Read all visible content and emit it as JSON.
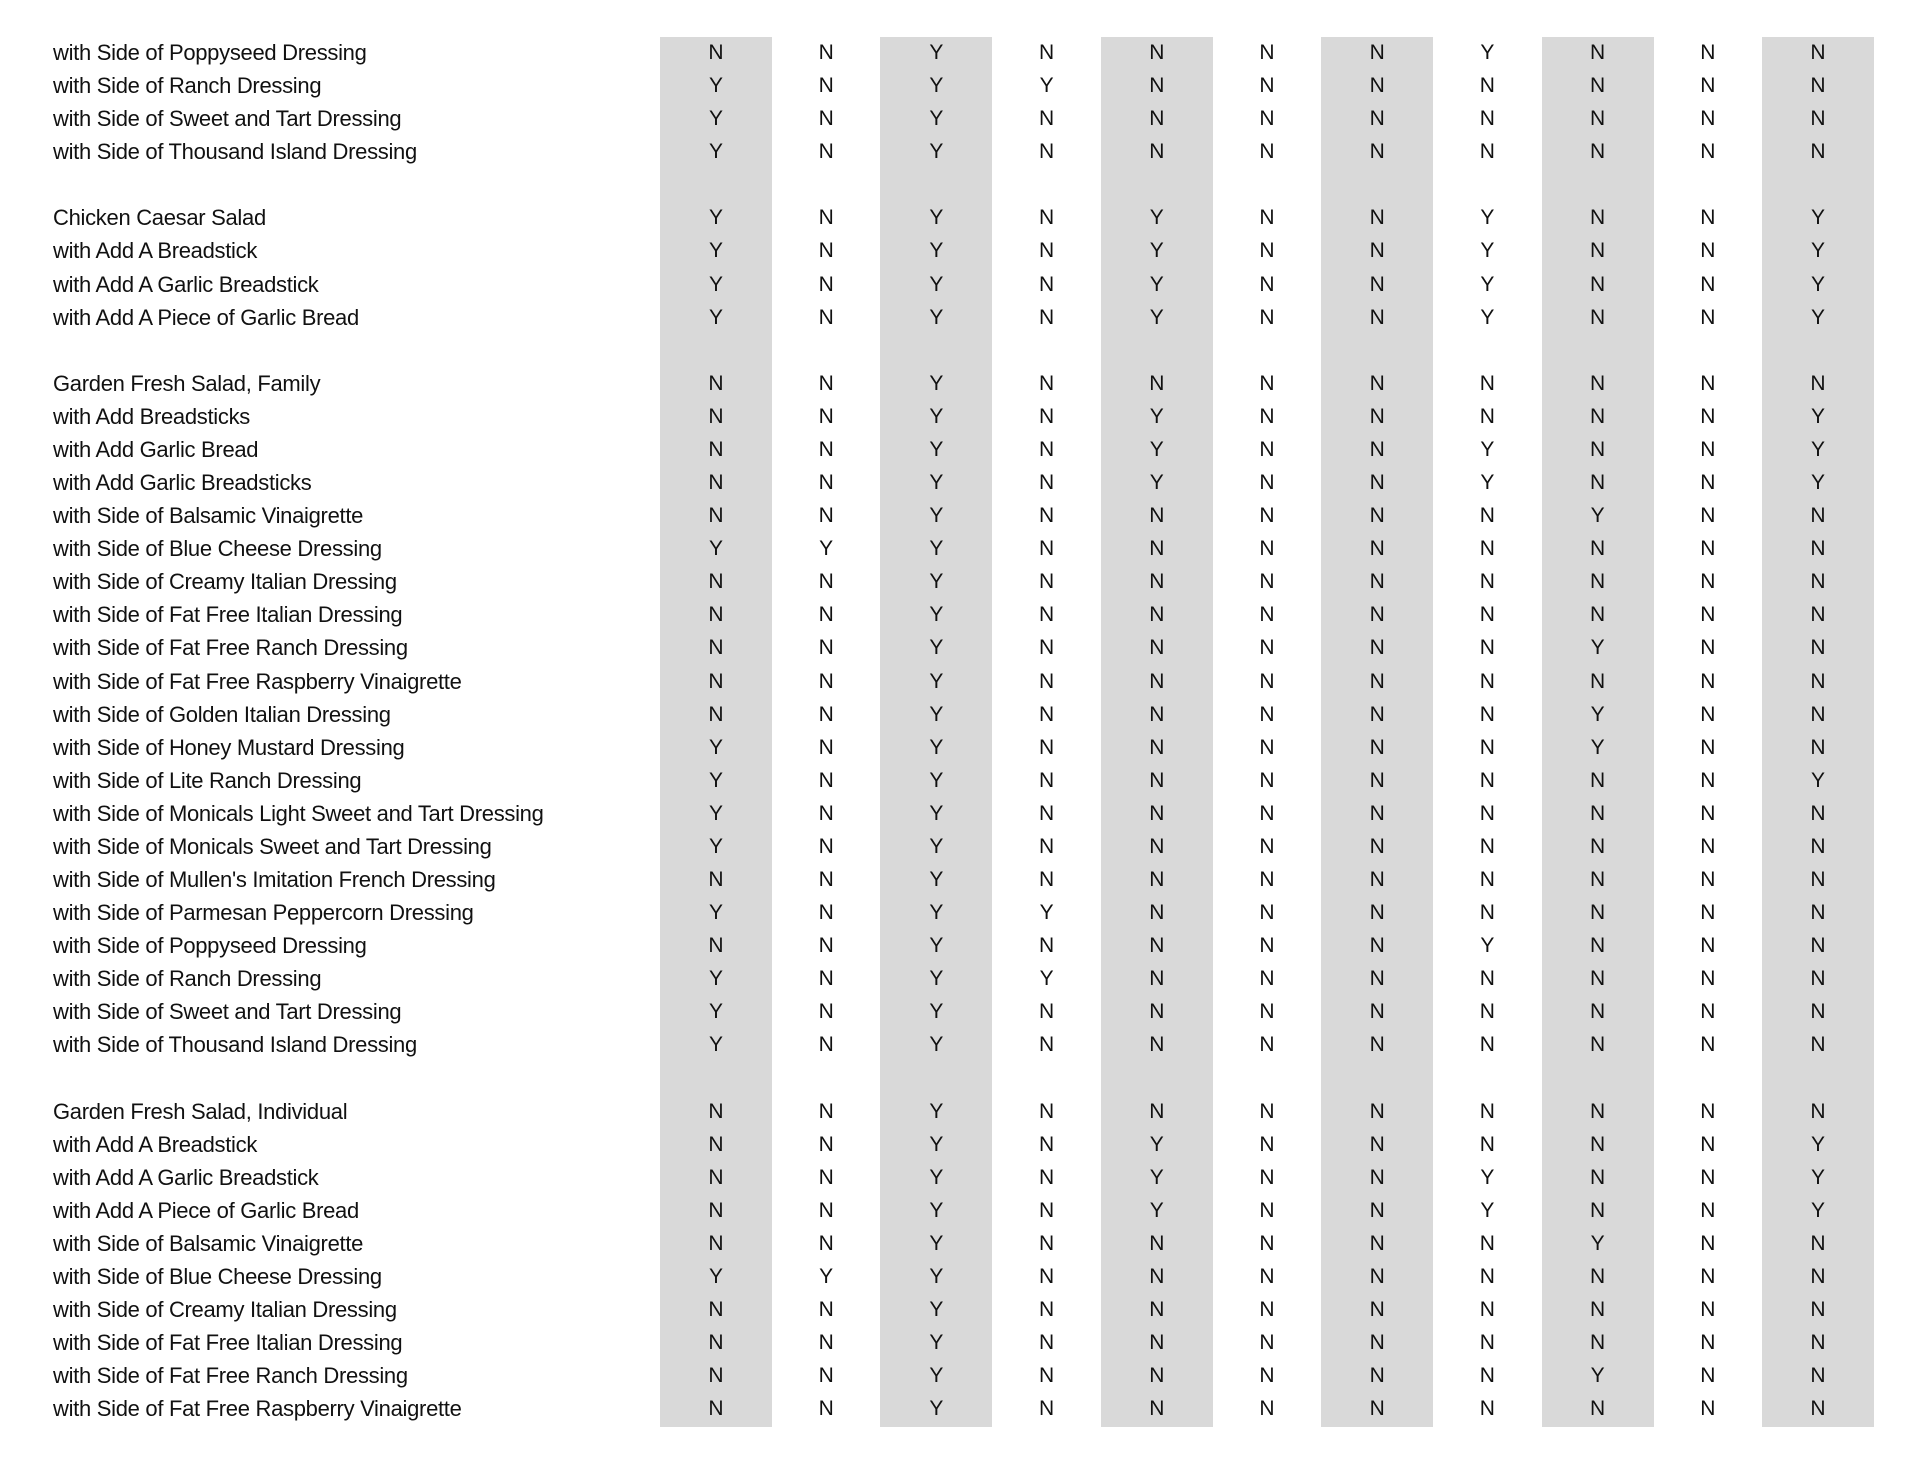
{
  "shaded_color": "#d9d9d9",
  "rows": [
    {
      "label": "with Side of Poppyseed Dressing",
      "values": [
        "N",
        "N",
        "Y",
        "N",
        "N",
        "N",
        "N",
        "Y",
        "N",
        "N",
        "N"
      ]
    },
    {
      "label": "with Side of Ranch Dressing",
      "values": [
        "Y",
        "N",
        "Y",
        "Y",
        "N",
        "N",
        "N",
        "N",
        "N",
        "N",
        "N"
      ]
    },
    {
      "label": "with Side of Sweet and Tart Dressing",
      "values": [
        "Y",
        "N",
        "Y",
        "N",
        "N",
        "N",
        "N",
        "N",
        "N",
        "N",
        "N"
      ]
    },
    {
      "label": "with Side of Thousand Island Dressing",
      "values": [
        "Y",
        "N",
        "Y",
        "N",
        "N",
        "N",
        "N",
        "N",
        "N",
        "N",
        "N"
      ]
    },
    null,
    {
      "label": "Chicken Caesar Salad",
      "values": [
        "Y",
        "N",
        "Y",
        "N",
        "Y",
        "N",
        "N",
        "Y",
        "N",
        "N",
        "Y"
      ]
    },
    {
      "label": "with Add A Breadstick",
      "values": [
        "Y",
        "N",
        "Y",
        "N",
        "Y",
        "N",
        "N",
        "Y",
        "N",
        "N",
        "Y"
      ]
    },
    {
      "label": "with Add A Garlic Breadstick",
      "values": [
        "Y",
        "N",
        "Y",
        "N",
        "Y",
        "N",
        "N",
        "Y",
        "N",
        "N",
        "Y"
      ]
    },
    {
      "label": "with Add A Piece of Garlic Bread",
      "values": [
        "Y",
        "N",
        "Y",
        "N",
        "Y",
        "N",
        "N",
        "Y",
        "N",
        "N",
        "Y"
      ]
    },
    null,
    {
      "label": "Garden Fresh Salad, Family",
      "values": [
        "N",
        "N",
        "Y",
        "N",
        "N",
        "N",
        "N",
        "N",
        "N",
        "N",
        "N"
      ]
    },
    {
      "label": "with Add Breadsticks",
      "values": [
        "N",
        "N",
        "Y",
        "N",
        "Y",
        "N",
        "N",
        "N",
        "N",
        "N",
        "Y"
      ]
    },
    {
      "label": "with Add Garlic Bread",
      "values": [
        "N",
        "N",
        "Y",
        "N",
        "Y",
        "N",
        "N",
        "Y",
        "N",
        "N",
        "Y"
      ]
    },
    {
      "label": "with Add Garlic Breadsticks",
      "values": [
        "N",
        "N",
        "Y",
        "N",
        "Y",
        "N",
        "N",
        "Y",
        "N",
        "N",
        "Y"
      ]
    },
    {
      "label": "with Side of Balsamic Vinaigrette",
      "values": [
        "N",
        "N",
        "Y",
        "N",
        "N",
        "N",
        "N",
        "N",
        "Y",
        "N",
        "N"
      ]
    },
    {
      "label": "with Side of Blue Cheese Dressing",
      "values": [
        "Y",
        "Y",
        "Y",
        "N",
        "N",
        "N",
        "N",
        "N",
        "N",
        "N",
        "N"
      ]
    },
    {
      "label": "with Side of Creamy Italian Dressing",
      "values": [
        "N",
        "N",
        "Y",
        "N",
        "N",
        "N",
        "N",
        "N",
        "N",
        "N",
        "N"
      ]
    },
    {
      "label": "with Side of Fat Free Italian Dressing",
      "values": [
        "N",
        "N",
        "Y",
        "N",
        "N",
        "N",
        "N",
        "N",
        "N",
        "N",
        "N"
      ]
    },
    {
      "label": "with Side of Fat Free Ranch Dressing",
      "values": [
        "N",
        "N",
        "Y",
        "N",
        "N",
        "N",
        "N",
        "N",
        "Y",
        "N",
        "N"
      ]
    },
    {
      "label": "with Side of Fat Free Raspberry Vinaigrette",
      "values": [
        "N",
        "N",
        "Y",
        "N",
        "N",
        "N",
        "N",
        "N",
        "N",
        "N",
        "N"
      ]
    },
    {
      "label": "with Side of Golden Italian Dressing",
      "values": [
        "N",
        "N",
        "Y",
        "N",
        "N",
        "N",
        "N",
        "N",
        "Y",
        "N",
        "N"
      ]
    },
    {
      "label": "with Side of Honey Mustard Dressing",
      "values": [
        "Y",
        "N",
        "Y",
        "N",
        "N",
        "N",
        "N",
        "N",
        "Y",
        "N",
        "N"
      ]
    },
    {
      "label": "with Side of Lite Ranch Dressing",
      "values": [
        "Y",
        "N",
        "Y",
        "N",
        "N",
        "N",
        "N",
        "N",
        "N",
        "N",
        "Y"
      ]
    },
    {
      "label": "with Side of Monicals Light Sweet and Tart Dressing",
      "values": [
        "Y",
        "N",
        "Y",
        "N",
        "N",
        "N",
        "N",
        "N",
        "N",
        "N",
        "N"
      ]
    },
    {
      "label": "with Side of Monicals Sweet and Tart Dressing",
      "values": [
        "Y",
        "N",
        "Y",
        "N",
        "N",
        "N",
        "N",
        "N",
        "N",
        "N",
        "N"
      ]
    },
    {
      "label": "with Side of Mullen's Imitation French Dressing",
      "values": [
        "N",
        "N",
        "Y",
        "N",
        "N",
        "N",
        "N",
        "N",
        "N",
        "N",
        "N"
      ]
    },
    {
      "label": "with Side of Parmesan Peppercorn Dressing",
      "values": [
        "Y",
        "N",
        "Y",
        "Y",
        "N",
        "N",
        "N",
        "N",
        "N",
        "N",
        "N"
      ]
    },
    {
      "label": "with Side of Poppyseed Dressing",
      "values": [
        "N",
        "N",
        "Y",
        "N",
        "N",
        "N",
        "N",
        "Y",
        "N",
        "N",
        "N"
      ]
    },
    {
      "label": "with Side of Ranch Dressing",
      "values": [
        "Y",
        "N",
        "Y",
        "Y",
        "N",
        "N",
        "N",
        "N",
        "N",
        "N",
        "N"
      ]
    },
    {
      "label": "with Side of Sweet and Tart Dressing",
      "values": [
        "Y",
        "N",
        "Y",
        "N",
        "N",
        "N",
        "N",
        "N",
        "N",
        "N",
        "N"
      ]
    },
    {
      "label": "with Side of Thousand Island Dressing",
      "values": [
        "Y",
        "N",
        "Y",
        "N",
        "N",
        "N",
        "N",
        "N",
        "N",
        "N",
        "N"
      ]
    },
    null,
    {
      "label": "Garden Fresh Salad, Individual",
      "values": [
        "N",
        "N",
        "Y",
        "N",
        "N",
        "N",
        "N",
        "N",
        "N",
        "N",
        "N"
      ]
    },
    {
      "label": "with Add A Breadstick",
      "values": [
        "N",
        "N",
        "Y",
        "N",
        "Y",
        "N",
        "N",
        "N",
        "N",
        "N",
        "Y"
      ]
    },
    {
      "label": "with Add A Garlic Breadstick",
      "values": [
        "N",
        "N",
        "Y",
        "N",
        "Y",
        "N",
        "N",
        "Y",
        "N",
        "N",
        "Y"
      ]
    },
    {
      "label": "with Add A Piece of Garlic Bread",
      "values": [
        "N",
        "N",
        "Y",
        "N",
        "Y",
        "N",
        "N",
        "Y",
        "N",
        "N",
        "Y"
      ]
    },
    {
      "label": "with Side of Balsamic Vinaigrette",
      "values": [
        "N",
        "N",
        "Y",
        "N",
        "N",
        "N",
        "N",
        "N",
        "Y",
        "N",
        "N"
      ]
    },
    {
      "label": "with Side of Blue Cheese Dressing",
      "values": [
        "Y",
        "Y",
        "Y",
        "N",
        "N",
        "N",
        "N",
        "N",
        "N",
        "N",
        "N"
      ]
    },
    {
      "label": "with Side of Creamy Italian Dressing",
      "values": [
        "N",
        "N",
        "Y",
        "N",
        "N",
        "N",
        "N",
        "N",
        "N",
        "N",
        "N"
      ]
    },
    {
      "label": "with Side of Fat Free Italian Dressing",
      "values": [
        "N",
        "N",
        "Y",
        "N",
        "N",
        "N",
        "N",
        "N",
        "N",
        "N",
        "N"
      ]
    },
    {
      "label": "with Side of Fat Free Ranch Dressing",
      "values": [
        "N",
        "N",
        "Y",
        "N",
        "N",
        "N",
        "N",
        "N",
        "Y",
        "N",
        "N"
      ]
    },
    {
      "label": "with Side of Fat Free Raspberry Vinaigrette",
      "values": [
        "N",
        "N",
        "Y",
        "N",
        "N",
        "N",
        "N",
        "N",
        "N",
        "N",
        "N"
      ]
    }
  ]
}
